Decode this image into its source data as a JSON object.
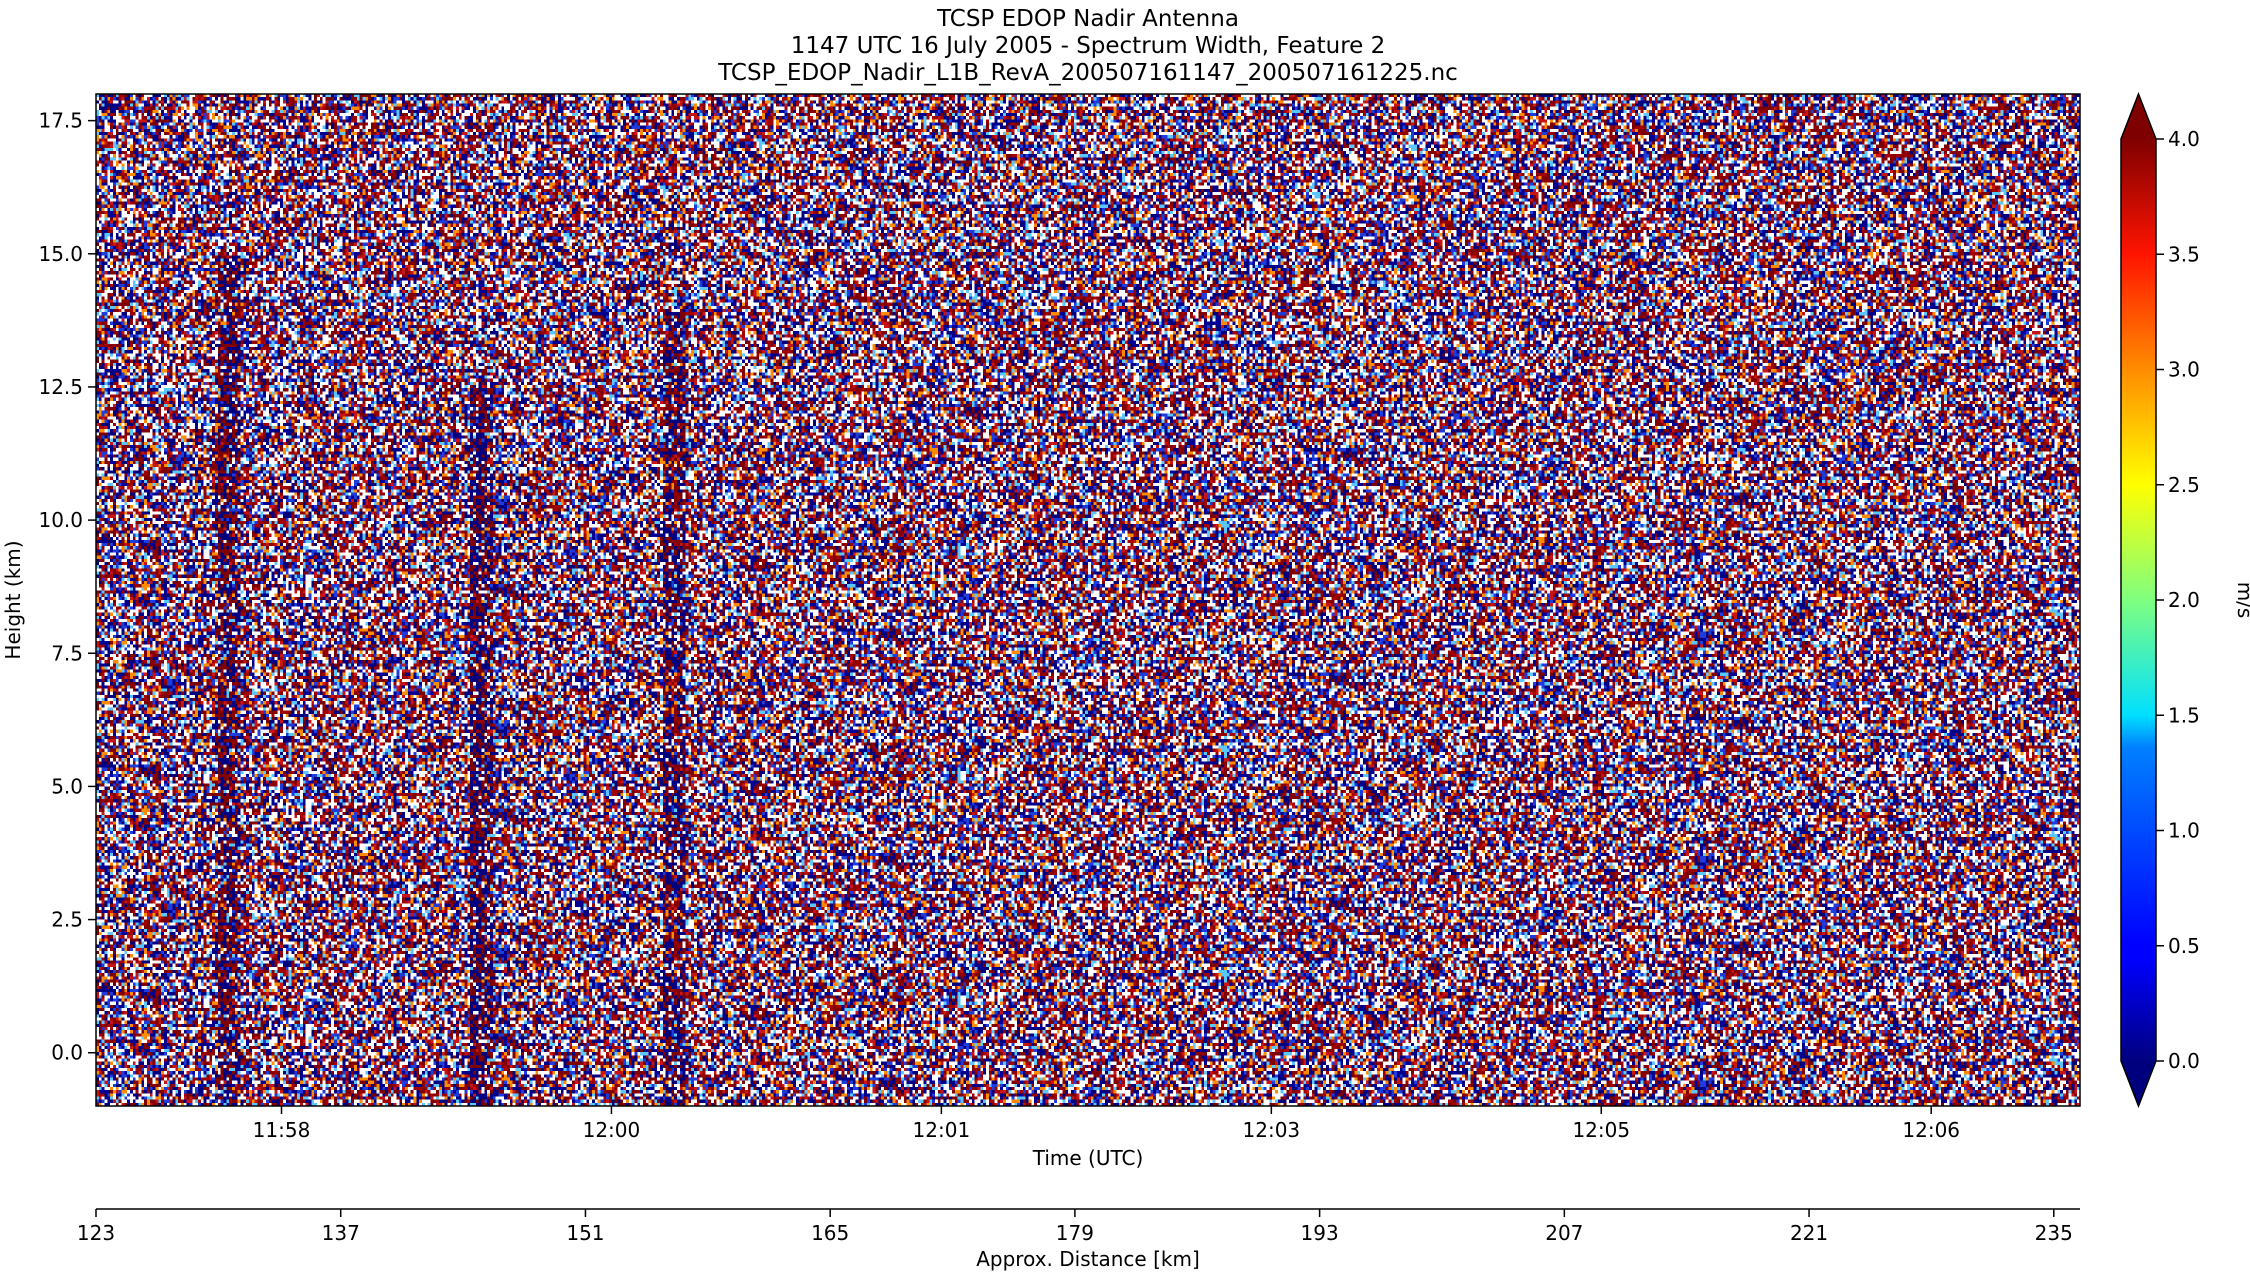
{
  "chart_data": {
    "type": "heatmap",
    "title_lines": [
      "TCSP EDOP Nadir Antenna",
      "1147 UTC 16 July 2005 - Spectrum Width, Feature 2",
      "TCSP_EDOP_Nadir_L1B_RevA_200507161147_200507161225.nc"
    ],
    "xlabel": "Time (UTC)",
    "ylabel": "Height (km)",
    "x_ticks": [
      "11:58",
      "12:00",
      "12:01",
      "12:03",
      "12:05",
      "12:06"
    ],
    "x_tick_positions_utc": [
      "11:58",
      "12:00",
      "12:01",
      "12:03",
      "12:05",
      "12:06"
    ],
    "ylim": [
      -1.0,
      18.0
    ],
    "y_ticks": [
      0.0,
      2.5,
      5.0,
      7.5,
      10.0,
      12.5,
      15.0,
      17.5
    ],
    "y_tick_labels": [
      "0.0",
      "2.5",
      "5.0",
      "7.5",
      "10.0",
      "12.5",
      "15.0",
      "17.5"
    ],
    "secondary_xlabel": "Approx. Distance [km]",
    "secondary_xlim": [
      123,
      236.5
    ],
    "secondary_x_ticks": [
      123,
      137,
      151,
      165,
      179,
      193,
      207,
      221,
      235
    ],
    "secondary_x_tick_labels": [
      "123",
      "137",
      "151",
      "165",
      "179",
      "193",
      "207",
      "221",
      "235"
    ],
    "colorbar": {
      "label": "m/s",
      "range": [
        0.0,
        4.0
      ],
      "extend": "both",
      "colormap": "jet",
      "ticks": [
        0.0,
        0.5,
        1.0,
        1.5,
        2.0,
        2.5,
        3.0,
        3.5,
        4.0
      ],
      "tick_labels": [
        "0.0",
        "0.5",
        "1.0",
        "1.5",
        "2.0",
        "2.5",
        "3.0",
        "3.5",
        "4.0"
      ]
    },
    "field_description": "noise-dominated spectrum width field; values mostly saturated at extremes (>4.0 dark red, <0.0 dark blue) with white missing-data gaps",
    "features": [
      {
        "kind": "vertical streak",
        "distance_km": 130.5,
        "height_range_km": [
          -1.0,
          15.0
        ]
      },
      {
        "kind": "vertical streak",
        "distance_km": 145.0,
        "height_range_km": [
          -1.0,
          12.5
        ]
      },
      {
        "kind": "vertical streak",
        "distance_km": 156.0,
        "height_range_km": [
          -1.0,
          14.0
        ]
      }
    ],
    "grid": false,
    "colors": {
      "low_extreme": "#00007f",
      "high_extreme": "#7f0000",
      "missing": "#ffffff"
    }
  }
}
